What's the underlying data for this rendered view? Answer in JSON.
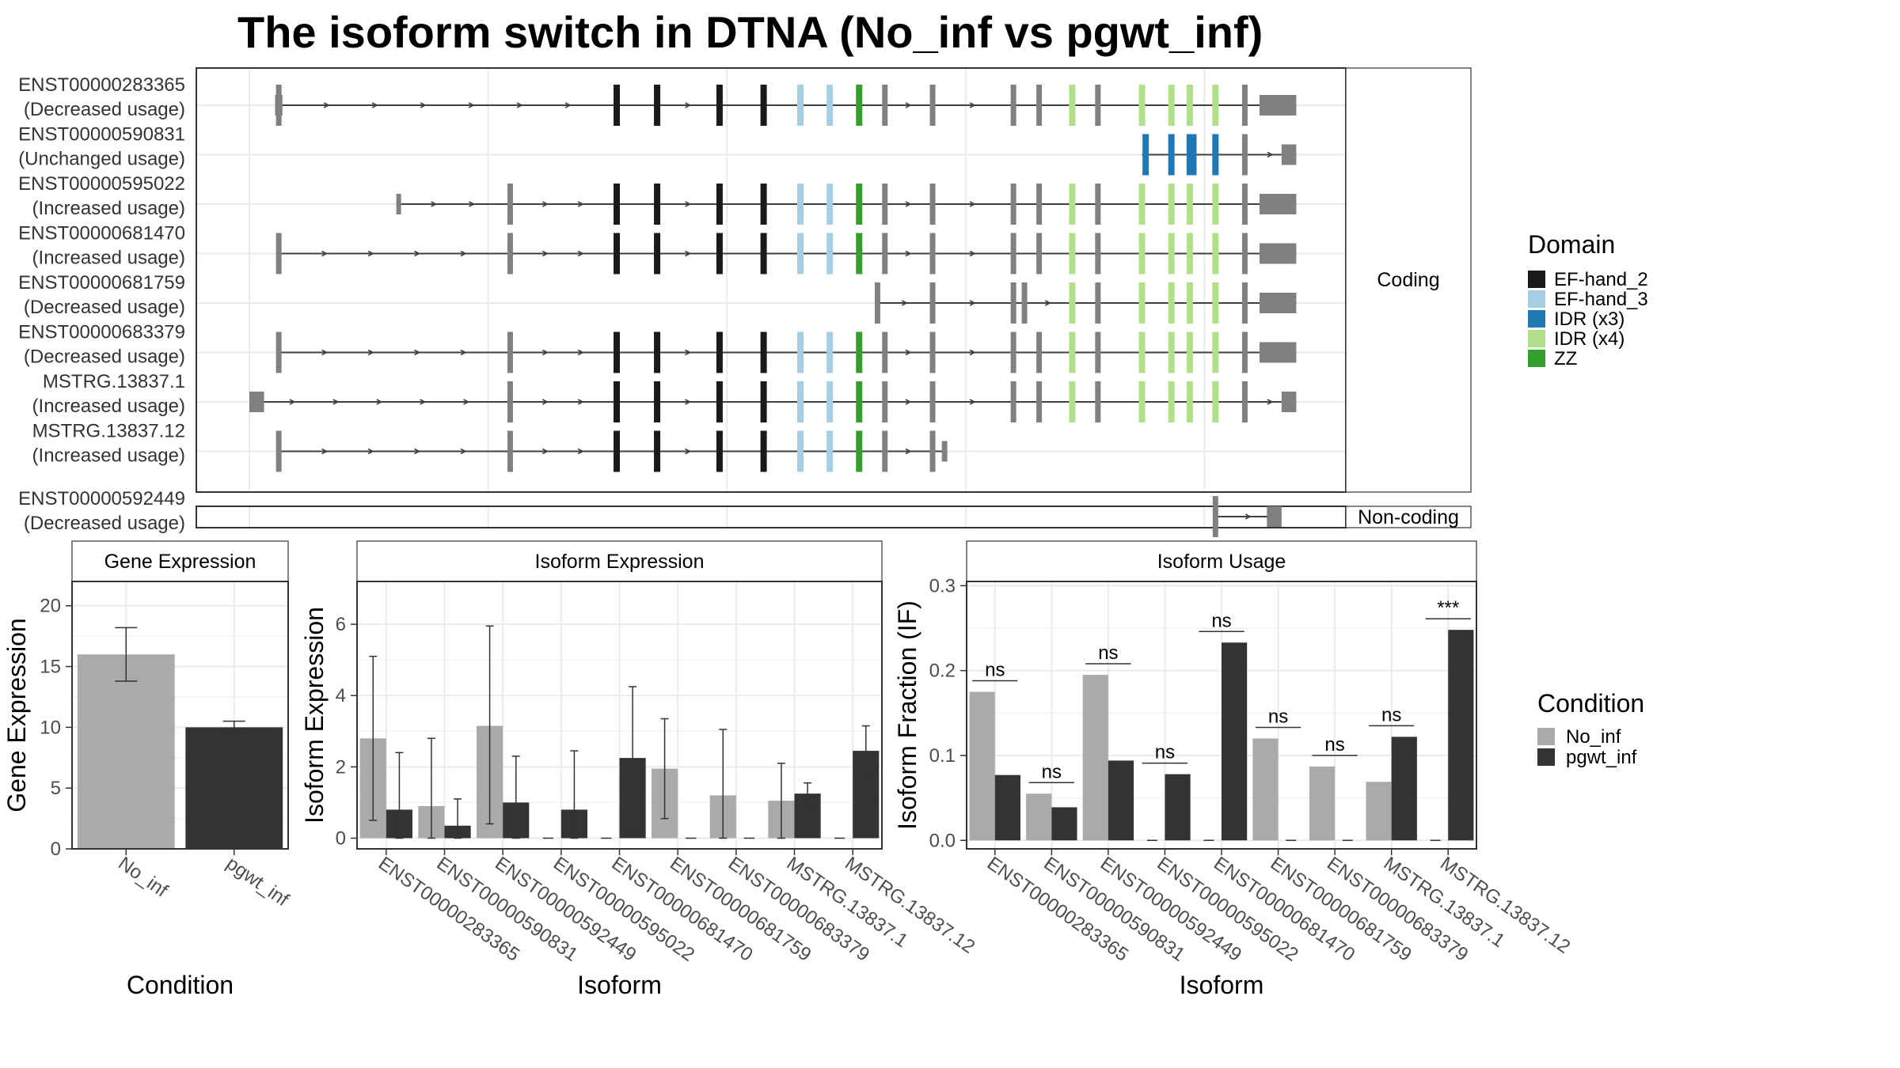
{
  "title": "The isoform switch in DTNA (No_inf vs pgwt_inf)",
  "colors": {
    "EF-hand_2": "#1a1a1a",
    "EF-hand_3": "#a6cee3",
    "IDR (x3)": "#1f78b4",
    "IDR (x4)": "#b2df8a",
    "ZZ": "#33a02c",
    "No_inf": "#aaaaaa",
    "pgwt_inf": "#333333",
    "exon": "#808080",
    "intron": "#404040"
  },
  "chart_data": [
    {
      "type": "gene-structure",
      "panels": {
        "coding": "Coding",
        "noncoding": "Non-coding"
      },
      "legend": {
        "title": "Domain",
        "entries": [
          "EF-hand_2",
          "EF-hand_3",
          "IDR (x3)",
          "IDR (x4)",
          "ZZ"
        ]
      },
      "transcripts": [
        {
          "id": "ENST00000283365",
          "status": "(Decreased usage)",
          "panel": "coding",
          "start": 0.7,
          "end": 28.5,
          "utr_ranges": [
            [
              0.7,
              0.9
            ],
            [
              27.5,
              28.5
            ]
          ],
          "exons": [
            0.8,
            10.0,
            11.1,
            12.8,
            14.0,
            15.0,
            15.8,
            16.6,
            17.3,
            18.6,
            20.8,
            21.5,
            22.4,
            23.1,
            24.3,
            25.1,
            25.6,
            26.3,
            27.1
          ],
          "domains": [
            {
              "pos": 10.0,
              "d": "EF-hand_2"
            },
            {
              "pos": 11.1,
              "d": "EF-hand_2"
            },
            {
              "pos": 12.8,
              "d": "EF-hand_2"
            },
            {
              "pos": 14.0,
              "d": "EF-hand_2"
            },
            {
              "pos": 15.0,
              "d": "EF-hand_3"
            },
            {
              "pos": 15.8,
              "d": "EF-hand_3"
            },
            {
              "pos": 16.6,
              "d": "ZZ"
            },
            {
              "pos": 22.4,
              "d": "IDR (x4)"
            },
            {
              "pos": 24.3,
              "d": "IDR (x4)"
            },
            {
              "pos": 25.1,
              "d": "IDR (x4)"
            },
            {
              "pos": 25.6,
              "d": "IDR (x4)"
            },
            {
              "pos": 26.3,
              "d": "IDR (x4)"
            }
          ]
        },
        {
          "id": "ENST00000590831",
          "status": "(Unchanged usage)",
          "panel": "coding",
          "start": 24.3,
          "end": 28.5,
          "utr_ranges": [
            [
              28.1,
              28.5
            ]
          ],
          "exons": [
            24.4,
            25.1,
            25.6,
            26.3,
            27.1
          ],
          "domains": [
            {
              "pos": 24.4,
              "d": "IDR (x3)"
            },
            {
              "pos": 25.1,
              "d": "IDR (x3)"
            },
            {
              "pos": 25.6,
              "d": "IDR (x3)"
            },
            {
              "pos": 25.7,
              "d": "IDR (x3)"
            },
            {
              "pos": 26.3,
              "d": "IDR (x3)"
            }
          ]
        },
        {
          "id": "ENST00000595022",
          "status": "(Increased usage)",
          "panel": "coding",
          "start": 4.0,
          "end": 28.5,
          "utr_ranges": [
            [
              4.0,
              4.1
            ],
            [
              27.5,
              28.5
            ]
          ],
          "exons": [
            7.1,
            10.0,
            11.1,
            12.8,
            14.0,
            15.0,
            15.8,
            16.6,
            17.3,
            18.6,
            20.8,
            21.5,
            22.4,
            23.1,
            24.3,
            25.1,
            25.6,
            26.3,
            27.1
          ],
          "domains": [
            {
              "pos": 10.0,
              "d": "EF-hand_2"
            },
            {
              "pos": 11.1,
              "d": "EF-hand_2"
            },
            {
              "pos": 12.8,
              "d": "EF-hand_2"
            },
            {
              "pos": 14.0,
              "d": "EF-hand_2"
            },
            {
              "pos": 15.0,
              "d": "EF-hand_3"
            },
            {
              "pos": 15.8,
              "d": "EF-hand_3"
            },
            {
              "pos": 16.6,
              "d": "ZZ"
            },
            {
              "pos": 22.4,
              "d": "IDR (x4)"
            },
            {
              "pos": 24.3,
              "d": "IDR (x4)"
            },
            {
              "pos": 25.1,
              "d": "IDR (x4)"
            },
            {
              "pos": 25.6,
              "d": "IDR (x4)"
            },
            {
              "pos": 26.3,
              "d": "IDR (x4)"
            }
          ]
        },
        {
          "id": "ENST00000681470",
          "status": "(Increased usage)",
          "panel": "coding",
          "start": 0.8,
          "end": 28.5,
          "utr_ranges": [
            [
              27.5,
              28.5
            ]
          ],
          "exons": [
            0.8,
            7.1,
            10.0,
            11.1,
            12.8,
            14.0,
            15.0,
            15.8,
            16.6,
            17.3,
            18.6,
            20.8,
            21.5,
            22.4,
            23.1,
            24.3,
            25.1,
            25.6,
            26.3,
            27.1
          ],
          "domains": [
            {
              "pos": 10.0,
              "d": "EF-hand_2"
            },
            {
              "pos": 11.1,
              "d": "EF-hand_2"
            },
            {
              "pos": 12.8,
              "d": "EF-hand_2"
            },
            {
              "pos": 14.0,
              "d": "EF-hand_2"
            },
            {
              "pos": 15.0,
              "d": "EF-hand_3"
            },
            {
              "pos": 15.8,
              "d": "EF-hand_3"
            },
            {
              "pos": 16.6,
              "d": "ZZ"
            },
            {
              "pos": 22.4,
              "d": "IDR (x4)"
            },
            {
              "pos": 24.3,
              "d": "IDR (x4)"
            },
            {
              "pos": 25.1,
              "d": "IDR (x4)"
            },
            {
              "pos": 25.6,
              "d": "IDR (x4)"
            },
            {
              "pos": 26.3,
              "d": "IDR (x4)"
            }
          ]
        },
        {
          "id": "ENST00000681759",
          "status": "(Decreased usage)",
          "panel": "coding",
          "start": 17.1,
          "end": 28.5,
          "utr_ranges": [
            [
              27.5,
              28.5
            ]
          ],
          "exons": [
            17.1,
            18.6,
            20.8,
            21.1,
            22.4,
            23.1,
            24.3,
            25.1,
            25.6,
            26.3,
            27.1
          ],
          "domains": [
            {
              "pos": 22.4,
              "d": "IDR (x4)"
            },
            {
              "pos": 24.3,
              "d": "IDR (x4)"
            },
            {
              "pos": 25.1,
              "d": "IDR (x4)"
            },
            {
              "pos": 25.6,
              "d": "IDR (x4)"
            },
            {
              "pos": 26.3,
              "d": "IDR (x4)"
            }
          ]
        },
        {
          "id": "ENST00000683379",
          "status": "(Decreased usage)",
          "panel": "coding",
          "start": 0.8,
          "end": 28.5,
          "utr_ranges": [
            [
              27.5,
              28.5
            ]
          ],
          "exons": [
            0.8,
            7.1,
            10.0,
            11.1,
            12.8,
            14.0,
            15.0,
            15.8,
            16.6,
            17.3,
            18.6,
            20.8,
            21.5,
            22.4,
            23.1,
            24.3,
            25.1,
            25.6,
            26.3,
            27.1
          ],
          "domains": [
            {
              "pos": 10.0,
              "d": "EF-hand_2"
            },
            {
              "pos": 11.1,
              "d": "EF-hand_2"
            },
            {
              "pos": 12.8,
              "d": "EF-hand_2"
            },
            {
              "pos": 14.0,
              "d": "EF-hand_2"
            },
            {
              "pos": 15.0,
              "d": "EF-hand_3"
            },
            {
              "pos": 15.8,
              "d": "EF-hand_3"
            },
            {
              "pos": 16.6,
              "d": "ZZ"
            },
            {
              "pos": 22.4,
              "d": "IDR (x4)"
            },
            {
              "pos": 24.3,
              "d": "IDR (x4)"
            },
            {
              "pos": 25.1,
              "d": "IDR (x4)"
            },
            {
              "pos": 25.6,
              "d": "IDR (x4)"
            },
            {
              "pos": 26.3,
              "d": "IDR (x4)"
            }
          ]
        },
        {
          "id": "MSTRG.13837.1",
          "status": "(Increased usage)",
          "panel": "coding",
          "start": 0.0,
          "end": 28.5,
          "utr_ranges": [
            [
              0.0,
              0.4
            ],
            [
              28.1,
              28.5
            ]
          ],
          "exons": [
            7.1,
            10.0,
            11.1,
            12.8,
            14.0,
            15.0,
            15.8,
            16.6,
            17.3,
            18.6,
            20.8,
            21.5,
            22.4,
            23.1,
            24.3,
            25.1,
            25.6,
            26.3,
            27.1
          ],
          "domains": [
            {
              "pos": 10.0,
              "d": "EF-hand_2"
            },
            {
              "pos": 11.1,
              "d": "EF-hand_2"
            },
            {
              "pos": 12.8,
              "d": "EF-hand_2"
            },
            {
              "pos": 14.0,
              "d": "EF-hand_2"
            },
            {
              "pos": 15.0,
              "d": "EF-hand_3"
            },
            {
              "pos": 15.8,
              "d": "EF-hand_3"
            },
            {
              "pos": 16.6,
              "d": "ZZ"
            },
            {
              "pos": 22.4,
              "d": "IDR (x4)"
            },
            {
              "pos": 24.3,
              "d": "IDR (x4)"
            },
            {
              "pos": 25.1,
              "d": "IDR (x4)"
            },
            {
              "pos": 25.6,
              "d": "IDR (x4)"
            },
            {
              "pos": 26.3,
              "d": "IDR (x4)"
            }
          ]
        },
        {
          "id": "MSTRG.13837.12",
          "status": "(Increased usage)",
          "panel": "coding",
          "start": 0.8,
          "end": 19.0,
          "utr_ranges": [
            [
              18.85,
              19.0
            ]
          ],
          "exons": [
            0.8,
            7.1,
            10.0,
            11.1,
            12.8,
            14.0,
            15.0,
            15.8,
            16.6,
            17.3,
            18.6
          ],
          "domains": [
            {
              "pos": 10.0,
              "d": "EF-hand_2"
            },
            {
              "pos": 11.1,
              "d": "EF-hand_2"
            },
            {
              "pos": 12.8,
              "d": "EF-hand_2"
            },
            {
              "pos": 14.0,
              "d": "EF-hand_2"
            },
            {
              "pos": 15.0,
              "d": "EF-hand_3"
            },
            {
              "pos": 15.8,
              "d": "EF-hand_3"
            },
            {
              "pos": 16.6,
              "d": "ZZ"
            }
          ]
        },
        {
          "id": "ENST00000592449",
          "status": "(Decreased usage)",
          "panel": "noncoding",
          "start": 26.3,
          "end": 28.1,
          "utr_ranges": [
            [
              27.7,
              28.1
            ]
          ],
          "exons": [
            26.3
          ],
          "domains": []
        }
      ]
    },
    {
      "type": "bar",
      "title": "Gene Expression",
      "xlabel": "Condition",
      "ylabel": "Gene Expression",
      "categories": [
        "No_inf",
        "pgwt_inf"
      ],
      "values": [
        16.0,
        10.0
      ],
      "error_low": [
        13.8,
        9.5
      ],
      "error_high": [
        18.2,
        10.5
      ],
      "yticks": [
        0,
        5,
        10,
        15,
        20
      ],
      "ylim": [
        0,
        22
      ]
    },
    {
      "type": "bar",
      "title": "Isoform Expression",
      "xlabel": "Isoform",
      "ylabel": "Isoform Expression",
      "categories": [
        "ENST00000283365",
        "ENST00000590831",
        "ENST00000592449",
        "ENST00000595022",
        "ENST00000681470",
        "ENST00000681759",
        "ENST00000683379",
        "MSTRG.13837.1",
        "MSTRG.13837.12"
      ],
      "series": [
        {
          "name": "No_inf",
          "values": [
            2.8,
            0.9,
            3.15,
            0,
            0,
            1.95,
            1.2,
            1.05,
            0
          ],
          "error_low": [
            0.5,
            0,
            0.4,
            0,
            0,
            0.55,
            0,
            0,
            0
          ],
          "error_high": [
            5.1,
            2.8,
            5.95,
            0,
            0,
            3.35,
            3.05,
            2.1,
            0
          ]
        },
        {
          "name": "pgwt_inf",
          "values": [
            0.8,
            0.35,
            1.0,
            0.8,
            2.25,
            0,
            0,
            1.25,
            2.45
          ],
          "error_low": [
            0,
            0,
            0,
            0,
            0.2,
            0,
            0,
            0.9,
            1.75
          ],
          "error_high": [
            2.4,
            1.1,
            2.3,
            2.45,
            4.25,
            0,
            0,
            1.55,
            3.15
          ]
        }
      ],
      "yticks": [
        0,
        2,
        4,
        6
      ],
      "ylim": [
        -0.3,
        7.2
      ]
    },
    {
      "type": "bar",
      "title": "Isoform Usage",
      "xlabel": "Isoform",
      "ylabel": "Isoform Fraction (IF)",
      "categories": [
        "ENST00000283365",
        "ENST00000590831",
        "ENST00000592449",
        "ENST00000595022",
        "ENST00000681470",
        "ENST00000681759",
        "ENST00000683379",
        "MSTRG.13837.1",
        "MSTRG.13837.12"
      ],
      "series": [
        {
          "name": "No_inf",
          "values": [
            0.175,
            0.055,
            0.195,
            0,
            0,
            0.12,
            0.087,
            0.069,
            0
          ]
        },
        {
          "name": "pgwt_inf",
          "values": [
            0.077,
            0.039,
            0.094,
            0.078,
            0.233,
            0,
            0,
            0.122,
            0.248
          ]
        }
      ],
      "significance": [
        "ns",
        "ns",
        "ns",
        "ns",
        "ns",
        "ns",
        "ns",
        "ns",
        "***"
      ],
      "yticks": [
        0.0,
        0.1,
        0.2,
        0.3
      ],
      "ytick_labels": [
        "0.0",
        "0.1",
        "0.2",
        "0.3"
      ],
      "ylim": [
        -0.01,
        0.305
      ]
    }
  ],
  "condition_legend": {
    "title": "Condition",
    "entries": [
      "No_inf",
      "pgwt_inf"
    ]
  }
}
